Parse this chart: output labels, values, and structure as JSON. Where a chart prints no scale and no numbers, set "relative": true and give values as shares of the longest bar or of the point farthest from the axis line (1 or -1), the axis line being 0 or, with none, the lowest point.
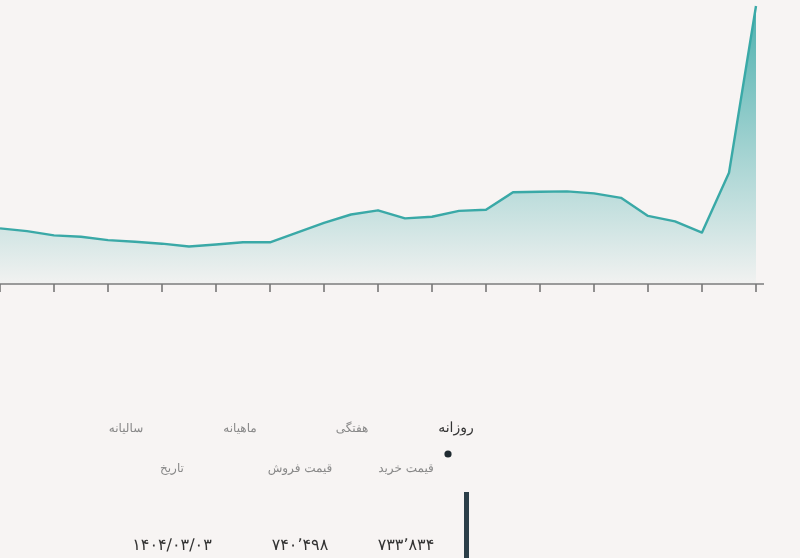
{
  "chart_data": {
    "type": "area",
    "relative": true,
    "color": "#3aa9a7",
    "categories": [
      null,
      null,
      null,
      null,
      null,
      null,
      null,
      null,
      null,
      null,
      null,
      null,
      null,
      null,
      null,
      null,
      null,
      null,
      null,
      null,
      null,
      null,
      null,
      null,
      null,
      null,
      null,
      null,
      null
    ],
    "values": [
      0.2,
      0.19,
      0.175,
      0.17,
      0.158,
      0.152,
      0.145,
      0.135,
      0.142,
      0.15,
      0.15,
      0.185,
      0.22,
      0.25,
      0.265,
      0.236,
      0.242,
      0.263,
      0.267,
      0.33,
      0.332,
      0.333,
      0.326,
      0.31,
      0.245,
      0.225,
      0.185,
      0.4,
      1.0
    ],
    "grid": false,
    "annotations": [
      "روزانه",
      "هفتگی",
      "ماهیانه",
      "سالیانه",
      "قیمت خرید",
      "قیمت فروش",
      "تاریخ",
      "۷۳۳٬۸۳۴",
      "۷۴۰٬۴۹۸",
      "۱۴۰۴/۰۳/۰۳"
    ]
  }
}
